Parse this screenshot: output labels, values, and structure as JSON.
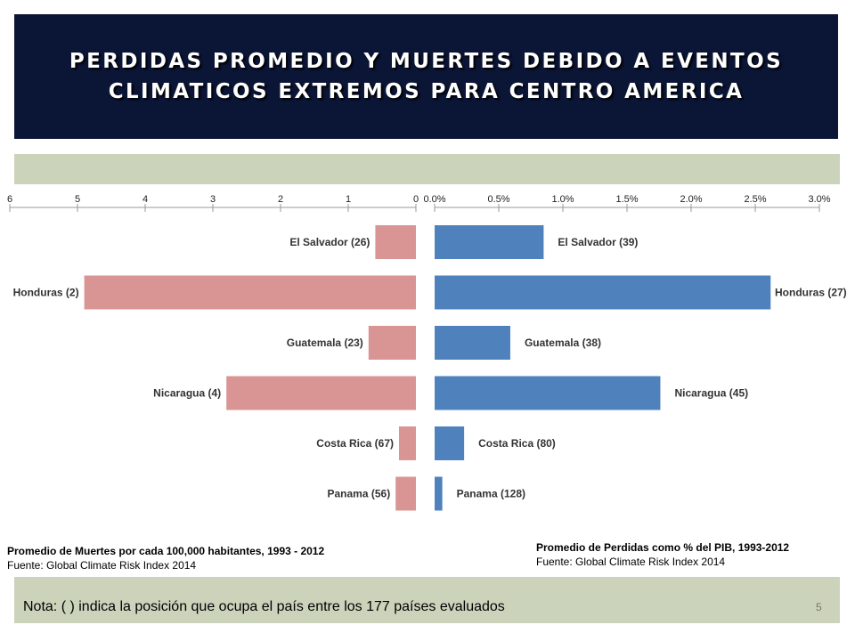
{
  "slide": {
    "title_line1": "PERDIDAS PROMEDIO Y MUERTES DEBIDO A EVENTOS",
    "title_line2": "CLIMATICOS EXTREMOS PARA CENTRO AMERICA",
    "note": "Nota: ( ) indica la posición que ocupa el país entre los 177 países evaluados",
    "page_number": "5",
    "colors": {
      "title_bg": "#0b1536",
      "band": "#ccd3bb",
      "deaths_bar": "#d99594",
      "losses_bar": "#4f81bd"
    }
  },
  "chart_data": [
    {
      "type": "bar",
      "orientation": "horizontal",
      "direction": "reversed",
      "title": "Promedio de Muertes por cada 100,000 habitantes, 1993 - 2012",
      "source": "Fuente: Global  Climate Risk Index 2014",
      "categories": [
        "El Salvador (26)",
        "Honduras (2)",
        "Guatemala (23)",
        "Nicaragua (4)",
        "Costa Rica (67)",
        "Panama (56)"
      ],
      "values": [
        0.6,
        4.9,
        0.7,
        2.8,
        0.25,
        0.3
      ],
      "xlim": [
        0,
        6
      ],
      "ticks": [
        "6",
        "5",
        "4",
        "3",
        "2",
        "1",
        "0"
      ],
      "color": "#d99594"
    },
    {
      "type": "bar",
      "orientation": "horizontal",
      "title": "Promedio de Perdidas como % del PIB, 1993-2012",
      "source": "Fuente: Global Climate Risk Index 2014",
      "categories": [
        "El Salvador (39)",
        "Honduras (27)",
        "Guatemala (38)",
        "Nicaragua (45)",
        "Costa Rica (80)",
        "Panama (128)"
      ],
      "values": [
        0.85,
        2.62,
        0.59,
        1.76,
        0.23,
        0.06
      ],
      "xlim": [
        0,
        3.0
      ],
      "ticks": [
        "0.0%",
        "0.5%",
        "1.0%",
        "1.5%",
        "2.0%",
        "2.5%",
        "3.0%"
      ],
      "color": "#4f81bd"
    }
  ]
}
